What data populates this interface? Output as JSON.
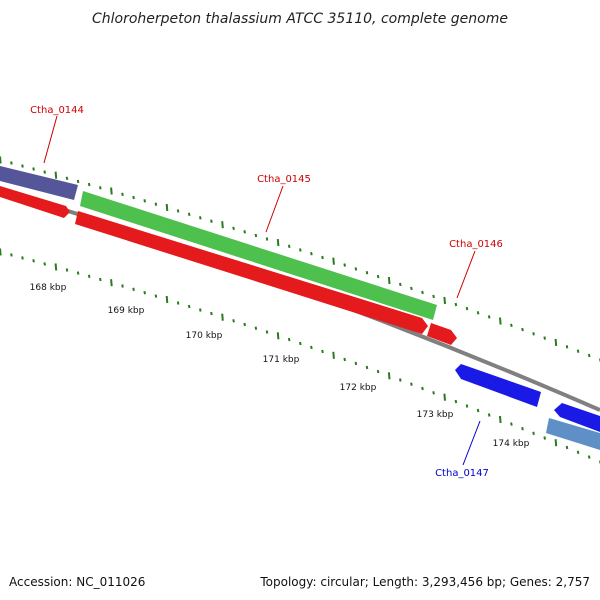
{
  "title": "Chloroherpeton thalassium ATCC 35110, complete genome",
  "footer": {
    "accession": "Accession: NC_011026",
    "summary": "Topology: circular; Length: 3,293,456 bp; Genes: 2,757"
  },
  "colors": {
    "backbone": "#808080",
    "tick": "#2a7a1e",
    "forward_red": "#e41a1c",
    "reverse_red": "#e41a1c",
    "green": "#4dc04d",
    "dark_purple": "#55559a",
    "blue": "#1a1ae6",
    "steel_blue": "#5e8fc6",
    "label_red": "#cc0000",
    "label_blue": "#0000cc"
  },
  "scale_labels": [
    "168 kbp",
    "169 kbp",
    "170 kbp",
    "171 kbp",
    "172 kbp",
    "173 kbp",
    "174 kbp"
  ],
  "gene_labels": [
    {
      "text": "Ctha_0144",
      "color": "label_red"
    },
    {
      "text": "Ctha_0145",
      "color": "label_red"
    },
    {
      "text": "Ctha_0146",
      "color": "label_red"
    },
    {
      "text": "Ctha_0147",
      "color": "label_blue"
    }
  ],
  "features": [
    {
      "id": "dark_purple_gene",
      "color": "dark_purple"
    },
    {
      "id": "red_gene_0144",
      "color": "forward_red"
    },
    {
      "id": "green_gene_0145",
      "color": "green"
    },
    {
      "id": "red_gene_0145",
      "color": "forward_red"
    },
    {
      "id": "red_gene_0146",
      "color": "forward_red"
    },
    {
      "id": "blue_gene_0147",
      "color": "blue"
    },
    {
      "id": "blue_gene_next",
      "color": "blue"
    },
    {
      "id": "steel_blue_gene",
      "color": "steel_blue"
    }
  ]
}
